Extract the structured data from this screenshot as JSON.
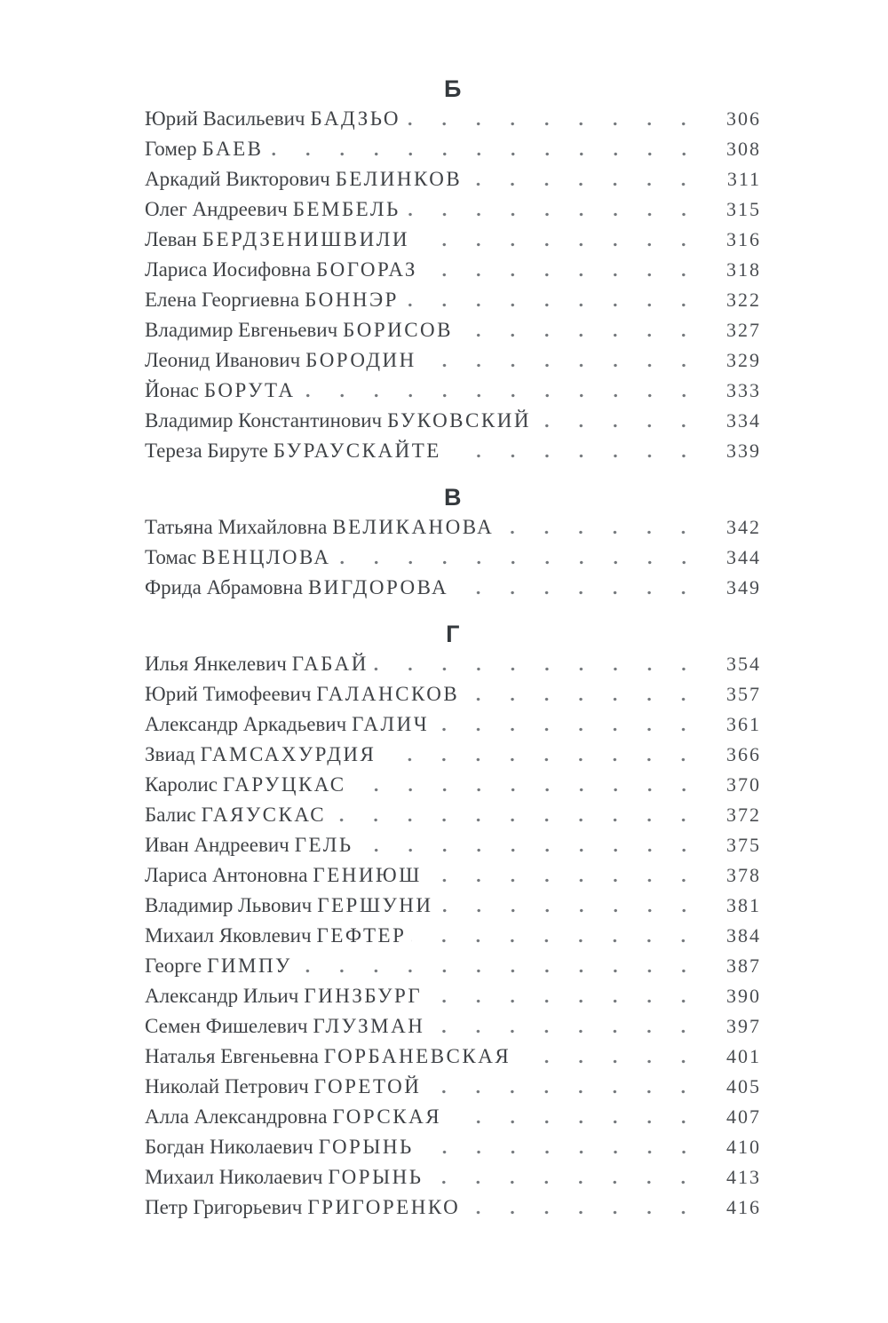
{
  "styles": {
    "page_background": "#ffffff",
    "text_color": "#3f4246",
    "header_color": "#34393d",
    "dot_color": "#74787c"
  },
  "sections": [
    {
      "letter": "Б",
      "entries": [
        {
          "given": "Юрий Васильевич",
          "surname": "БАДЗЬО",
          "page": "306"
        },
        {
          "given": "Гомер",
          "surname": "БАЕВ",
          "page": "308"
        },
        {
          "given": "Аркадий Викторович",
          "surname": "БЕЛИНКОВ",
          "page": "311"
        },
        {
          "given": "Олег Андреевич",
          "surname": "БЕМБЕЛЬ",
          "page": "315"
        },
        {
          "given": "Леван",
          "surname": "БЕРДЗЕНИШВИЛИ",
          "page": "316"
        },
        {
          "given": "Лариса Иосифовна",
          "surname": "БОГОРАЗ",
          "page": "318"
        },
        {
          "given": "Елена Георгиевна",
          "surname": "БОННЭР",
          "page": "322"
        },
        {
          "given": "Владимир Евгеньевич",
          "surname": "БОРИСОВ",
          "page": "327"
        },
        {
          "given": "Леонид Иванович",
          "surname": "БОРОДИН",
          "page": "329"
        },
        {
          "given": "Йонас",
          "surname": "БОРУТА",
          "page": "333"
        },
        {
          "given": "Владимир Константинович",
          "surname": "БУКОВСКИЙ",
          "page": "334"
        },
        {
          "given": "Тереза Бируте",
          "surname": "БУРАУСКАЙТЕ",
          "page": "339"
        }
      ]
    },
    {
      "letter": "В",
      "entries": [
        {
          "given": "Татьяна Михайловна",
          "surname": "ВЕЛИКАНОВА",
          "page": "342"
        },
        {
          "given": "Томас",
          "surname": "ВЕНЦЛОВА",
          "page": "344"
        },
        {
          "given": "Фрида Абрамовна",
          "surname": "ВИГДОРОВА",
          "page": "349"
        }
      ]
    },
    {
      "letter": "Г",
      "entries": [
        {
          "given": "Илья Янкелевич",
          "surname": "ГАБАЙ",
          "page": "354"
        },
        {
          "given": "Юрий Тимофеевич",
          "surname": "ГАЛАНСКОВ",
          "page": "357"
        },
        {
          "given": "Александр Аркадьевич",
          "surname": "ГАЛИЧ",
          "page": "361"
        },
        {
          "given": "Звиад",
          "surname": "ГАМСАХУРДИЯ",
          "page": "366"
        },
        {
          "given": "Каролис",
          "surname": "ГАРУЦКАС",
          "page": "370"
        },
        {
          "given": "Балис",
          "surname": "ГАЯУСКАС",
          "page": "372"
        },
        {
          "given": "Иван Андреевич",
          "surname": "ГЕЛЬ",
          "page": "375"
        },
        {
          "given": "Лариса Антоновна",
          "surname": "ГЕНИЮШ",
          "page": "378"
        },
        {
          "given": "Владимир Львович",
          "surname": "ГЕРШУНИ",
          "page": "381"
        },
        {
          "given": "Михаил Яковлевич",
          "surname": "ГЕФТЕР",
          "page": "384"
        },
        {
          "given": "Георге",
          "surname": "ГИМПУ",
          "page": "387"
        },
        {
          "given": "Александр Ильич",
          "surname": "ГИНЗБУРГ",
          "page": "390"
        },
        {
          "given": "Семен Фишелевич",
          "surname": "ГЛУЗМАН",
          "page": "397"
        },
        {
          "given": "Наталья Евгеньевна",
          "surname": "ГОРБАНЕВСКАЯ",
          "page": "401"
        },
        {
          "given": "Николай Петрович",
          "surname": "ГОРЕТОЙ",
          "page": "405"
        },
        {
          "given": "Алла Александровна",
          "surname": "ГОРСКАЯ",
          "page": "407"
        },
        {
          "given": "Богдан Николаевич",
          "surname": "ГОРЫНЬ",
          "page": "410"
        },
        {
          "given": "Михаил Николаевич",
          "surname": "ГОРЫНЬ",
          "page": "413"
        },
        {
          "given": "Петр Григорьевич",
          "surname": "ГРИГОРЕНКО",
          "page": "416"
        }
      ]
    }
  ]
}
